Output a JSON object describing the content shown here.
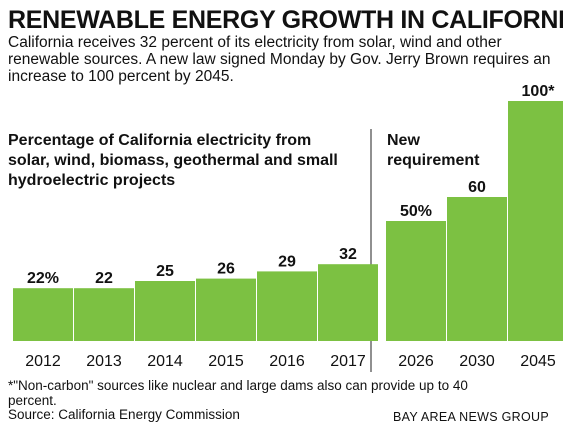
{
  "header": {
    "title": "RENEWABLE ENERGY GROWTH IN CALIFORNIA",
    "dek": "California receives 32 percent of its electricity from solar, wind and other renewable sources. A new law signed Monday by  Gov. Jerry Brown requires an increase to 100 percent by 2045."
  },
  "chart_data": {
    "type": "bar",
    "bar_color": "#7cc142",
    "panels": [
      {
        "subtitle": "Percentage of California electricity from solar, wind, biomass, geothermal and small hydroelectric projects",
        "categories": [
          "2012",
          "2013",
          "2014",
          "2015",
          "2016",
          "2017"
        ],
        "values": [
          22,
          22,
          25,
          26,
          29,
          32
        ],
        "data_labels": [
          "22%",
          "22",
          "25",
          "26",
          "29",
          "32"
        ]
      },
      {
        "subtitle": "New requirement",
        "categories": [
          "2026",
          "2030",
          "2045"
        ],
        "values": [
          50,
          60,
          100
        ],
        "data_labels": [
          "50%",
          "60",
          "100*"
        ]
      }
    ],
    "ylim": [
      0,
      100
    ],
    "grid": false,
    "legend": "none"
  },
  "footer": {
    "footnote": "*\"Non-carbon\" sources like nuclear and large dams also can provide up to 40 percent.",
    "source": "Source: California Energy Commission",
    "credit": "BAY AREA NEWS GROUP"
  }
}
